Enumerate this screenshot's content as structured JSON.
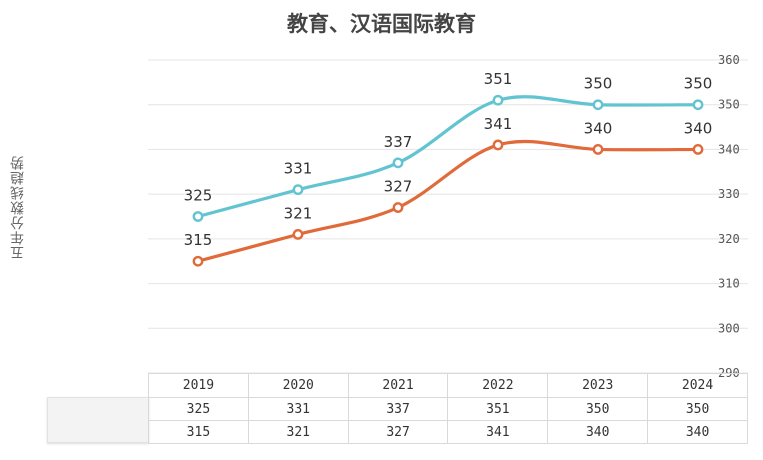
{
  "chart_data": {
    "type": "line",
    "title": "教育、汉语国际教育",
    "ylabel": "五年分数线趋势",
    "xlabel": "",
    "categories": [
      "2019",
      "2020",
      "2021",
      "2022",
      "2023",
      "2024"
    ],
    "ylim": [
      290,
      360
    ],
    "yticks": [
      "290",
      "300",
      "310",
      "320",
      "330",
      "340",
      "350",
      "360"
    ],
    "grid": true,
    "series": [
      {
        "name": "",
        "values": [
          325,
          331,
          337,
          351,
          350,
          350
        ],
        "labels": [
          "325",
          "331",
          "337",
          "351",
          "350",
          "350"
        ],
        "color": "#62c4d0"
      },
      {
        "name": "",
        "values": [
          315,
          321,
          327,
          341,
          340,
          340
        ],
        "labels": [
          "315",
          "321",
          "327",
          "341",
          "340",
          "340"
        ],
        "color": "#e06a3a"
      }
    ]
  }
}
